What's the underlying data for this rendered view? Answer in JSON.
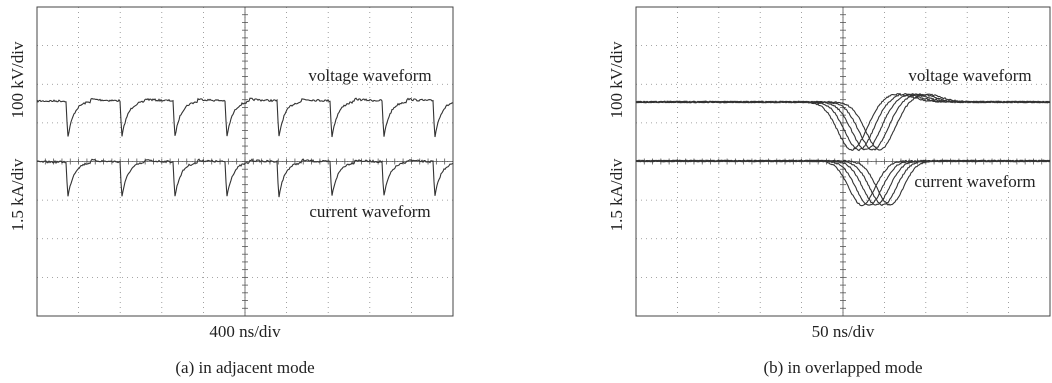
{
  "panels": [
    {
      "y_labels": [
        "100 kV/div",
        "1.5 kA/div"
      ],
      "annotations": [
        "voltage waveform",
        "current waveform"
      ],
      "x_label": "400 ns/div",
      "caption": "(a) in adjacent mode"
    },
    {
      "y_labels": [
        "100 kV/div",
        "1.5 kA/div"
      ],
      "annotations": [
        "voltage waveform",
        "current waveform"
      ],
      "x_label": "50 ns/div",
      "caption": "(b) in overlapped mode"
    }
  ]
}
